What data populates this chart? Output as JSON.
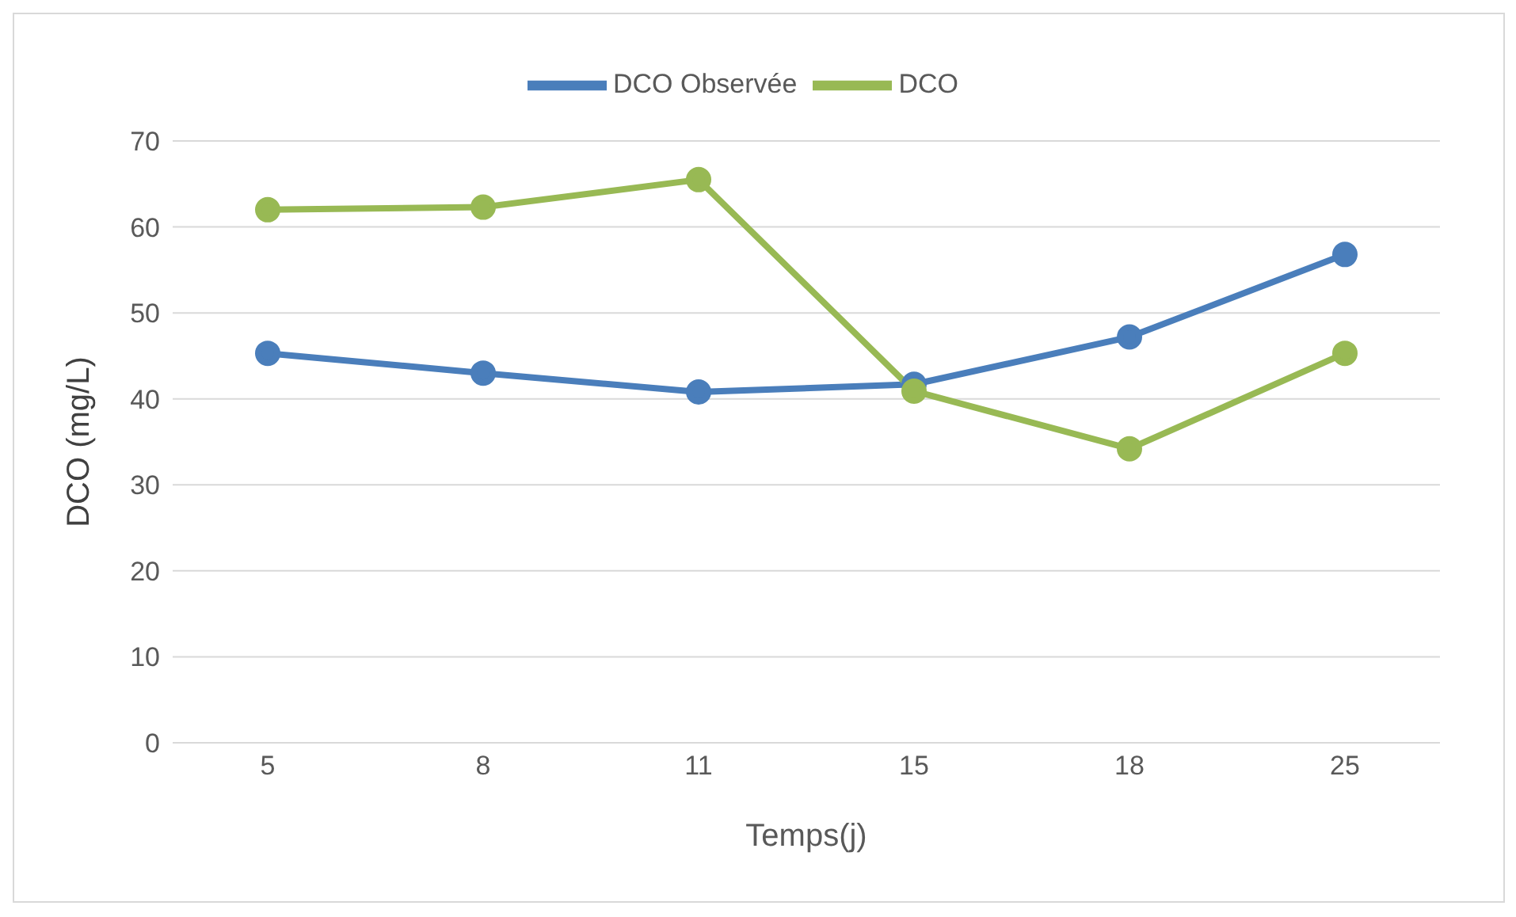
{
  "chart_data": {
    "type": "line",
    "xlabel": "Temps(j)",
    "ylabel": "DCO (mg/L)",
    "categories": [
      "5",
      "8",
      "11",
      "15",
      "18",
      "25"
    ],
    "series": [
      {
        "name": "DCO Observée",
        "color": "#4a7ebb",
        "values": [
          45.3,
          43.0,
          40.8,
          41.7,
          47.2,
          56.8
        ]
      },
      {
        "name": "DCO",
        "color": "#98b954",
        "values": [
          62.0,
          62.3,
          65.5,
          40.9,
          34.2,
          45.3
        ]
      }
    ],
    "ylim": [
      0,
      70
    ],
    "yticks": [
      0,
      10,
      20,
      30,
      40,
      50,
      60,
      70
    ],
    "grid": "y",
    "legend": "top",
    "marker": "circle",
    "line_style": "solid"
  }
}
